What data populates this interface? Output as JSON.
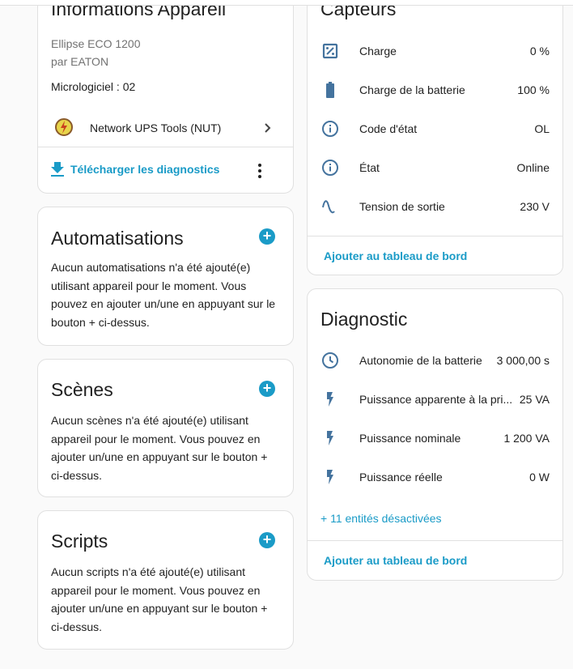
{
  "colors": {
    "accent": "#1a9bc7",
    "icon": "#44739e",
    "background": "#fafafa"
  },
  "device_info": {
    "title": "Informations Appareil",
    "model": "Ellipse ECO 1200",
    "manufacturer": "par EATON",
    "firmware": "Micrologiciel : 02",
    "integration": {
      "label": "Network UPS Tools (NUT)",
      "icon": "nut-logo-icon"
    },
    "download_label": "Télécharger les diagnostics"
  },
  "automations": {
    "title": "Automatisations",
    "text": "Aucun automatisations n'a été ajouté(e) utilisant appareil pour le moment. Vous pouvez en ajouter un/une en appuyant sur le bouton + ci-dessus."
  },
  "scenes": {
    "title": "Scènes",
    "text": "Aucun scènes n'a été ajouté(e) utilisant appareil pour le moment. Vous pouvez en ajouter un/une en appuyant sur le bouton + ci-dessus."
  },
  "scripts": {
    "title": "Scripts",
    "text": "Aucun scripts n'a été ajouté(e) utilisant appareil pour le moment. Vous pouvez en ajouter un/une en appuyant sur le bouton + ci-dessus."
  },
  "plus_label": "+",
  "sensors": {
    "title": "Capteurs",
    "items": [
      {
        "icon": "percent-box-icon",
        "label": "Charge",
        "value": "0 %"
      },
      {
        "icon": "battery-icon",
        "label": "Charge de la batterie",
        "value": "100 %"
      },
      {
        "icon": "information-icon",
        "label": "Code d'état",
        "value": "OL"
      },
      {
        "icon": "information-icon",
        "label": "État",
        "value": "Online"
      },
      {
        "icon": "sine-wave-icon",
        "label": "Tension de sortie",
        "value": "230 V"
      }
    ],
    "add_label": "Ajouter au tableau de bord"
  },
  "diagnostic": {
    "title": "Diagnostic",
    "items": [
      {
        "icon": "clock-icon",
        "label": "Autonomie de la batterie",
        "value": "3 000,00 s"
      },
      {
        "icon": "flash-icon",
        "label": "Puissance apparente à la pri...",
        "value": "25 VA"
      },
      {
        "icon": "flash-icon",
        "label": "Puissance nominale",
        "value": "1 200 VA"
      },
      {
        "icon": "flash-icon",
        "label": "Puissance réelle",
        "value": "0 W"
      }
    ],
    "disabled_label": "+ 11 entités désactivées",
    "add_label": "Ajouter au tableau de bord"
  }
}
